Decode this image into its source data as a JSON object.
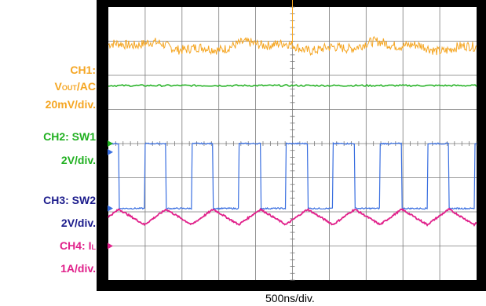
{
  "labels": {
    "ch1_name": "CH1:",
    "ch1_signal_main": "V",
    "ch1_signal_sub": "OUT",
    "ch1_coupling": "/AC",
    "ch1_scale": "20mV/div.",
    "ch2_name": "CH2: SW1",
    "ch2_scale": "2V/div.",
    "ch3_name": "CH3: SW2",
    "ch3_scale": "2V/div.",
    "ch4_prefix": "CH4: I",
    "ch4_sub": "L",
    "ch4_scale": "1A/div."
  },
  "timebase": "500ns/div.",
  "colors": {
    "ch1": "#f5a623",
    "ch2": "#20b020",
    "ch3": "#3a6fe0",
    "ch4": "#e0208a",
    "screen": "#ffffff",
    "grid": "#7a7a7a",
    "label_blue": "#1c1c8c"
  },
  "chart_data": {
    "type": "line",
    "grid": true,
    "x_divisions": 10,
    "y_divisions": 8,
    "x_unit": "500ns/div.",
    "series": [
      {
        "name": "CH1: VOUT/AC",
        "scale": "20mV/div.",
        "shape": "noisy ripple",
        "offset_div": 2.85,
        "amplitude_div": 0.15
      },
      {
        "name": "CH2: SW1",
        "scale": "2V/div.",
        "shape": "flat",
        "offset_div": 1.7
      },
      {
        "name": "CH3: SW2",
        "scale": "2V/div.",
        "shape": "square",
        "period_div": 1.28,
        "duty": 0.46,
        "high_div": 0.0,
        "low_div": -1.9,
        "first_rise_div": 0.0
      },
      {
        "name": "CH4: IL",
        "scale": "1A/div.",
        "shape": "triangle",
        "period_div": 1.28,
        "center_div": -2.15,
        "peak_to_peak_div": 0.45
      }
    ]
  }
}
